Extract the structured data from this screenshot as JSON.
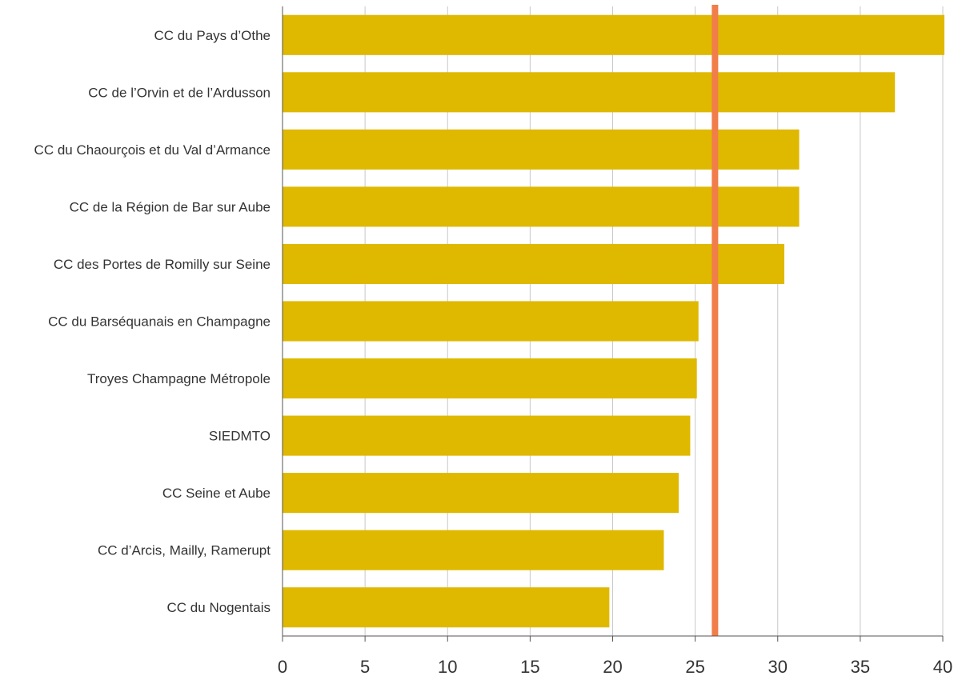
{
  "chart_data": {
    "type": "bar",
    "orientation": "horizontal",
    "categories": [
      "CC du Pays d’Othe",
      "CC de l’Orvin et de l’Ardusson",
      "CC du Chaourçois et du Val d’Armance",
      "CC de la Région de Bar sur Aube",
      "CC des Portes de Romilly sur Seine",
      "CC du Barséquanais en Champagne",
      "Troyes Champagne Métropole",
      "SIEDMTO",
      "CC Seine et Aube",
      "CC d’Arcis, Mailly, Ramerupt",
      "CC du Nogentais"
    ],
    "values": [
      40.1,
      37.1,
      31.3,
      31.3,
      30.4,
      25.2,
      25.1,
      24.7,
      24.0,
      23.1,
      19.8
    ],
    "reference_line": {
      "value": 26.2,
      "color": "#f07d4a"
    },
    "xlim": [
      0,
      40
    ],
    "xticks": [
      "0",
      "5",
      "10",
      "15",
      "20",
      "25",
      "30",
      "35",
      "40"
    ],
    "grid": "vertical",
    "title": "",
    "xlabel": "",
    "ylabel": "",
    "colors": {
      "bar": "#dfb800",
      "grid": "#c8c8c8",
      "axis": "#555555",
      "text": "#333333"
    }
  }
}
